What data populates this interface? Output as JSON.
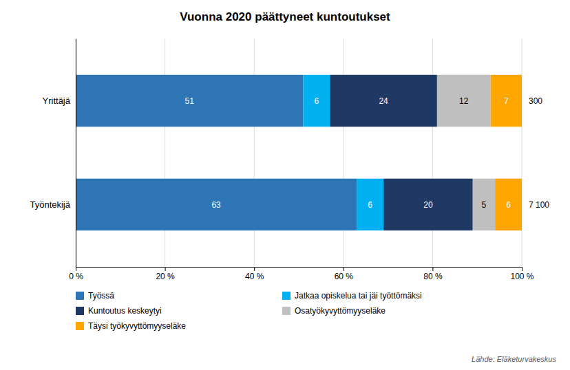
{
  "chart_data": {
    "type": "bar",
    "orientation": "horizontal",
    "stacked": true,
    "data_labels": true,
    "grid": true,
    "legend": "bottom",
    "title": "Vuonna 2020 päättyneet kuntoutukset",
    "categories": [
      "Työntekijä",
      "Yrittäjä"
    ],
    "series": [
      {
        "name": "Työssä",
        "color": "#2E75B6",
        "values": [
          63,
          51
        ]
      },
      {
        "name": "Jatkaa opiskelua tai jäi työttömäksi",
        "color": "#00B0F0",
        "values": [
          6,
          6
        ]
      },
      {
        "name": "Kuntoutus keskeytyi",
        "color": "#1F3864",
        "values": [
          20,
          24
        ]
      },
      {
        "name": "Osatyökyvyttömyyseläke",
        "color": "#BFBFBF",
        "values": [
          5,
          12
        ]
      },
      {
        "name": "Täysi työkyvyttömyyseläke",
        "color": "#FFA500",
        "values": [
          6,
          7
        ]
      }
    ],
    "annotations": [
      "7 100",
      "300"
    ],
    "source": "Lähde: Eläketurvakeskus",
    "xlim": [
      0,
      100
    ],
    "xticks": [
      {
        "value": 0,
        "label": "0 %"
      },
      {
        "value": 20,
        "label": "20 %"
      },
      {
        "value": 40,
        "label": "40 %"
      },
      {
        "value": 60,
        "label": "60 %"
      },
      {
        "value": 80,
        "label": "80 %"
      },
      {
        "value": 100,
        "label": "100 %"
      }
    ]
  }
}
